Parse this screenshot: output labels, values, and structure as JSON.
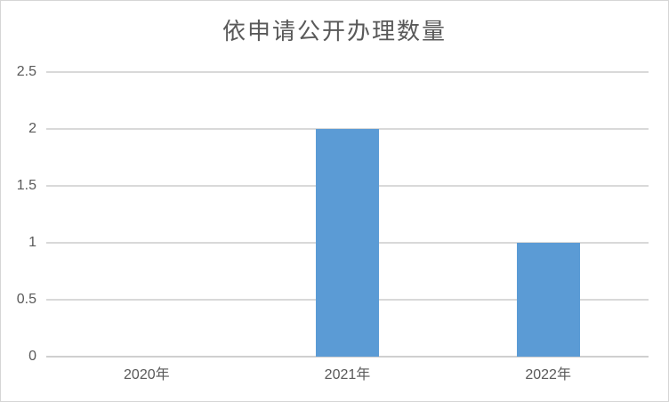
{
  "chart_data": {
    "type": "bar",
    "title": "依申请公开办理数量",
    "categories": [
      "2020年",
      "2021年",
      "2022年"
    ],
    "values": [
      0,
      2,
      1
    ],
    "xlabel": "",
    "ylabel": "",
    "ylim": [
      0,
      2.5
    ],
    "yticks": [
      0,
      0.5,
      1,
      1.5,
      2,
      2.5
    ],
    "ytick_labels": [
      "0",
      "0.5",
      "1",
      "1.5",
      "2",
      "2.5"
    ],
    "legend": false,
    "grid": "horizontal",
    "bar_color": "#5B9BD5",
    "gridline_color": "#D9D9D9",
    "axis_line_color": "#CFCFCF",
    "axis_label_color": "#595959",
    "title_color": "#595959",
    "background_color": "#FFFFFF",
    "frame_border_color": "#D6D6D6"
  }
}
